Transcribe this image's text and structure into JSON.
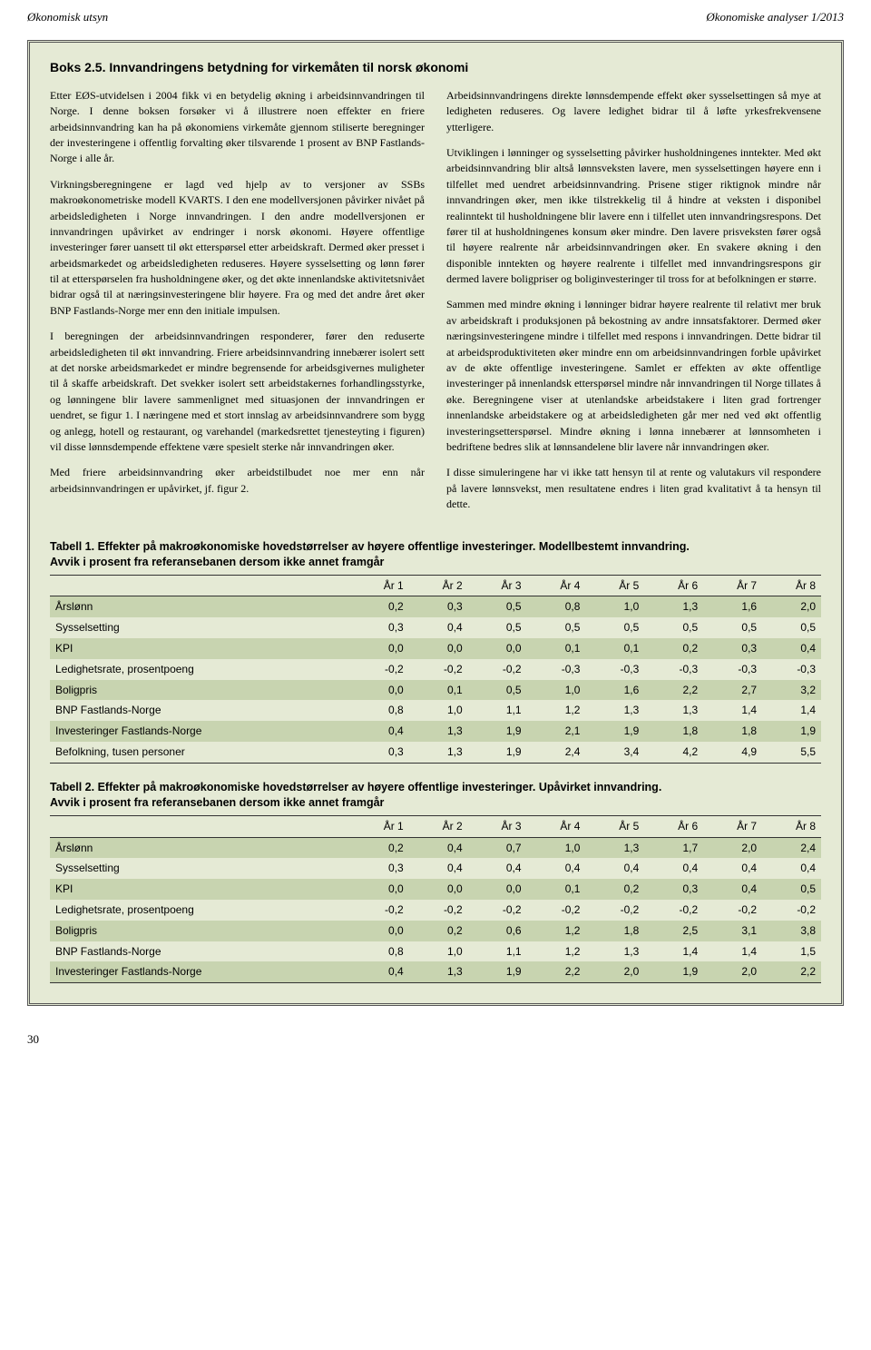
{
  "header": {
    "left": "Økonomisk utsyn",
    "right": "Økonomiske analyser 1/2013"
  },
  "box": {
    "title": "Boks 2.5. Innvandringens betydning for virkemåten til norsk økonomi",
    "left_paragraphs": [
      "Etter EØS-utvidelsen i 2004 fikk vi en betydelig økning i arbeidsinnvandringen til Norge. I denne boksen forsøker vi å illustrere noen effekter en friere arbeidsinnvandring kan ha på økonomiens virkemåte gjennom stiliserte beregninger der investeringene i offentlig forvalting øker tilsvarende 1 prosent av BNP Fastlands-Norge i alle år.",
      "Virkningsberegningene er lagd ved hjelp av to versjoner av SSBs makroøkonometriske modell KVARTS. I den ene modellversjonen påvirker nivået på arbeidsledigheten i Norge innvandringen. I den andre modellversjonen er innvandringen upåvirket av endringer i norsk økonomi. Høyere offentlige investeringer fører uansett til økt etterspørsel etter arbeidskraft. Dermed øker presset i arbeidsmarkedet og arbeidsledigheten reduseres. Høyere sysselsetting og lønn fører til at etterspørselen fra husholdningene øker, og det økte innenlandske aktivitetsnivået bidrar også til at næringsinvesteringene blir høyere. Fra og med det andre året øker BNP Fastlands-Norge mer enn den initiale impulsen.",
      "I beregningen der arbeidsinnvandringen responderer, fører den reduserte arbeidsledigheten til økt innvandring. Friere arbeidsinnvandring innebærer isolert sett at det norske arbeidsmarkedet er mindre begrensende for arbeidsgivernes muligheter til å skaffe arbeidskraft. Det svekker isolert sett arbeidstakernes forhandlingsstyrke, og lønningene blir lavere sammenlignet med situasjonen der innvandringen er uendret, se figur 1. I næringene med et stort innslag av arbeidsinnvandrere som bygg og anlegg, hotell og restaurant, og varehandel (markedsrettet tjenesteyting i figuren) vil disse lønnsdempende effektene være spesielt sterke når innvandringen øker.",
      "Med friere arbeidsinnvandring øker arbeidstilbudet noe mer enn når arbeidsinnvandringen er upåvirket, jf. figur 2."
    ],
    "right_paragraphs": [
      "Arbeidsinnvandringens direkte lønnsdempende effekt øker sysselsettingen så mye at ledigheten reduseres. Og lavere ledighet bidrar til å løfte yrkesfrekvensene ytterligere.",
      "Utviklingen i lønninger og sysselsetting påvirker husholdningenes inntekter. Med økt arbeidsinnvandring blir altså lønnsveksten lavere, men sysselsettingen høyere enn i tilfellet med uendret arbeidsinnvandring. Prisene stiger riktignok mindre når innvandringen øker, men ikke tilstrekkelig til å hindre at veksten i disponibel realinntekt til husholdningene blir lavere enn i tilfellet uten innvandringsrespons. Det fører til at husholdningenes konsum øker mindre. Den lavere prisveksten fører også til høyere realrente når arbeidsinnvandringen øker. En svakere økning i den disponible inntekten og høyere realrente i tilfellet med innvandringsrespons gir dermed lavere boligpriser og boliginvesteringer til tross for at befolkningen er større.",
      "Sammen med mindre økning i lønninger bidrar høyere realrente til relativt mer bruk av arbeidskraft i produksjonen på bekostning av andre innsatsfaktorer. Dermed øker næringsinvesteringene mindre i tilfellet med respons i innvandringen. Dette bidrar til at arbeidsproduktiviteten øker mindre enn om arbeidsinnvandringen forble upåvirket av de økte offentlige investeringene. Samlet er effekten av økte offentlige investeringer på innenlandsk etterspørsel mindre når innvandringen til Norge tillates å øke. Beregningene viser at utenlandske arbeidstakere i liten grad fortrenger innenlandske arbeidstakere og at arbeidsledigheten går mer ned ved økt offentlig investeringsetterspørsel. Mindre økning i lønna innebærer at lønnsomheten i bedriftene bedres slik at lønnsandelene blir lavere når innvandringen øker.",
      "I disse simuleringene har vi ikke tatt hensyn til at rente og valutakurs vil respondere på lavere lønnsvekst, men resultatene endres i liten grad kvalitativt å ta hensyn til dette."
    ]
  },
  "table1": {
    "caption_bold": "Tabell 1. Effekter på makroøkonomiske hovedstørrelser av høyere offentlige investeringer. Modellbestemt innvandring.",
    "caption_rest": "Avvik i prosent fra referansebanen dersom ikke annet framgår",
    "columns": [
      "",
      "År 1",
      "År 2",
      "År 3",
      "År 4",
      "År 5",
      "År 6",
      "År 7",
      "År 8"
    ],
    "rows": [
      {
        "label": "Årslønn",
        "vals": [
          "0,2",
          "0,3",
          "0,5",
          "0,8",
          "1,0",
          "1,3",
          "1,6",
          "2,0"
        ],
        "shade": true
      },
      {
        "label": "Sysselsetting",
        "vals": [
          "0,3",
          "0,4",
          "0,5",
          "0,5",
          "0,5",
          "0,5",
          "0,5",
          "0,5"
        ],
        "shade": false
      },
      {
        "label": "KPI",
        "vals": [
          "0,0",
          "0,0",
          "0,0",
          "0,1",
          "0,1",
          "0,2",
          "0,3",
          "0,4"
        ],
        "shade": true
      },
      {
        "label": "Ledighetsrate, prosentpoeng",
        "vals": [
          "-0,2",
          "-0,2",
          "-0,2",
          "-0,3",
          "-0,3",
          "-0,3",
          "-0,3",
          "-0,3"
        ],
        "shade": false
      },
      {
        "label": "Boligpris",
        "vals": [
          "0,0",
          "0,1",
          "0,5",
          "1,0",
          "1,6",
          "2,2",
          "2,7",
          "3,2"
        ],
        "shade": true
      },
      {
        "label": "BNP Fastlands-Norge",
        "vals": [
          "0,8",
          "1,0",
          "1,1",
          "1,2",
          "1,3",
          "1,3",
          "1,4",
          "1,4"
        ],
        "shade": false
      },
      {
        "label": "Investeringer Fastlands-Norge",
        "vals": [
          "0,4",
          "1,3",
          "1,9",
          "2,1",
          "1,9",
          "1,8",
          "1,8",
          "1,9"
        ],
        "shade": true
      },
      {
        "label": "Befolkning, tusen personer",
        "vals": [
          "0,3",
          "1,3",
          "1,9",
          "2,4",
          "3,4",
          "4,2",
          "4,9",
          "5,5"
        ],
        "shade": false
      }
    ]
  },
  "table2": {
    "caption_bold": "Tabell 2. Effekter på makroøkonomiske hovedstørrelser av høyere offentlige investeringer. Upåvirket innvandring.",
    "caption_rest": "Avvik i prosent fra referansebanen dersom ikke annet framgår",
    "columns": [
      "",
      "År 1",
      "År 2",
      "År 3",
      "År 4",
      "År 5",
      "År 6",
      "År 7",
      "År 8"
    ],
    "rows": [
      {
        "label": "Årslønn",
        "vals": [
          "0,2",
          "0,4",
          "0,7",
          "1,0",
          "1,3",
          "1,7",
          "2,0",
          "2,4"
        ],
        "shade": true
      },
      {
        "label": "Sysselsetting",
        "vals": [
          "0,3",
          "0,4",
          "0,4",
          "0,4",
          "0,4",
          "0,4",
          "0,4",
          "0,4"
        ],
        "shade": false
      },
      {
        "label": "KPI",
        "vals": [
          "0,0",
          "0,0",
          "0,0",
          "0,1",
          "0,2",
          "0,3",
          "0,4",
          "0,5"
        ],
        "shade": true
      },
      {
        "label": "Ledighetsrate, prosentpoeng",
        "vals": [
          "-0,2",
          "-0,2",
          "-0,2",
          "-0,2",
          "-0,2",
          "-0,2",
          "-0,2",
          "-0,2"
        ],
        "shade": false
      },
      {
        "label": "Boligpris",
        "vals": [
          "0,0",
          "0,2",
          "0,6",
          "1,2",
          "1,8",
          "2,5",
          "3,1",
          "3,8"
        ],
        "shade": true
      },
      {
        "label": "BNP Fastlands-Norge",
        "vals": [
          "0,8",
          "1,0",
          "1,1",
          "1,2",
          "1,3",
          "1,4",
          "1,4",
          "1,5"
        ],
        "shade": false
      },
      {
        "label": "Investeringer Fastlands-Norge",
        "vals": [
          "0,4",
          "1,3",
          "1,9",
          "2,2",
          "2,0",
          "1,9",
          "2,0",
          "2,2"
        ],
        "shade": true
      }
    ]
  },
  "page_number": "30"
}
